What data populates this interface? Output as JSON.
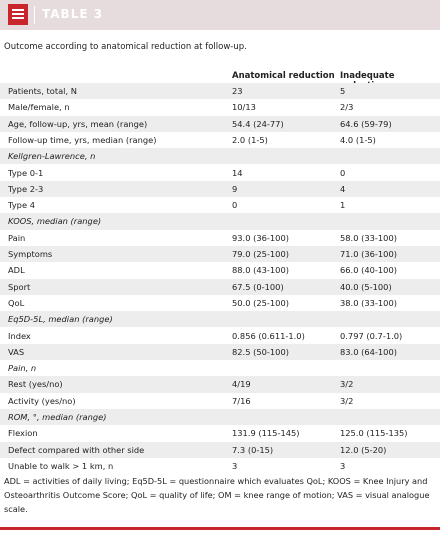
{
  "header": {
    "title": "TABLE 3"
  },
  "caption": "Outcome according to anatomical reduction at follow-up.",
  "table": {
    "columns": [
      "Anatomical reduction",
      "Inadequate reduction"
    ],
    "rows": [
      [
        "Patients, total, N",
        "23",
        "5"
      ],
      [
        "Male/female, n",
        "10/13",
        "2/3"
      ],
      [
        "Age, follow-up, yrs, mean (range)",
        "54.4 (24-77)",
        "64.6 (59-79)"
      ],
      [
        "Follow-up time, yrs, median (range)",
        "2.0 (1-5)",
        "4.0 (1-5)"
      ],
      [
        "Kellgren-Lawrence, n"
      ],
      [
        "Type 0-1",
        "14",
        "0"
      ],
      [
        "Type 2-3",
        "9",
        "4"
      ],
      [
        "Type 4",
        "0",
        "1"
      ],
      [
        "KOOS, median (range)"
      ],
      [
        "Pain",
        "93.0 (36-100)",
        "58.0 (33-100)"
      ],
      [
        "Symptoms",
        "79.0 (25-100)",
        "71.0 (36-100)"
      ],
      [
        "ADL",
        "88.0 (43-100)",
        "66.0 (40-100)"
      ],
      [
        "Sport",
        "67.5 (0-100)",
        "40.0 (5-100)"
      ],
      [
        "QoL",
        "50.0 (25-100)",
        "38.0 (33-100)"
      ],
      [
        "Eq5D-5L, median (range)"
      ],
      [
        "Index",
        "0.856 (0.611-1.0)",
        "0.797 (0.7-1.0)"
      ],
      [
        "VAS",
        "82.5 (50-100)",
        "83.0 (64-100)"
      ],
      [
        "Pain, n"
      ],
      [
        "Rest (yes/no)",
        "4/19",
        "3/2"
      ],
      [
        "Activity (yes/no)",
        "7/16",
        "3/2"
      ],
      [
        "ROM, °, median (range)"
      ],
      [
        "Flexion",
        "131.9 (115-145)",
        "125.0 (115-135)"
      ],
      [
        "Defect compared with other side",
        "7.3 (0-15)",
        "12.0 (5-20)"
      ],
      [
        "Unable to walk > 1 km, n",
        "3",
        "3"
      ]
    ]
  },
  "footnote": "ADL = activities of daily living;  Eq5D-5L = questionnaire which evaluates QoL;  KOOS = Knee Injury and Osteoarthritis Outcome Score;  QoL = quality of life;  OM = knee range of motion;  VAS = visual analogue scale."
}
